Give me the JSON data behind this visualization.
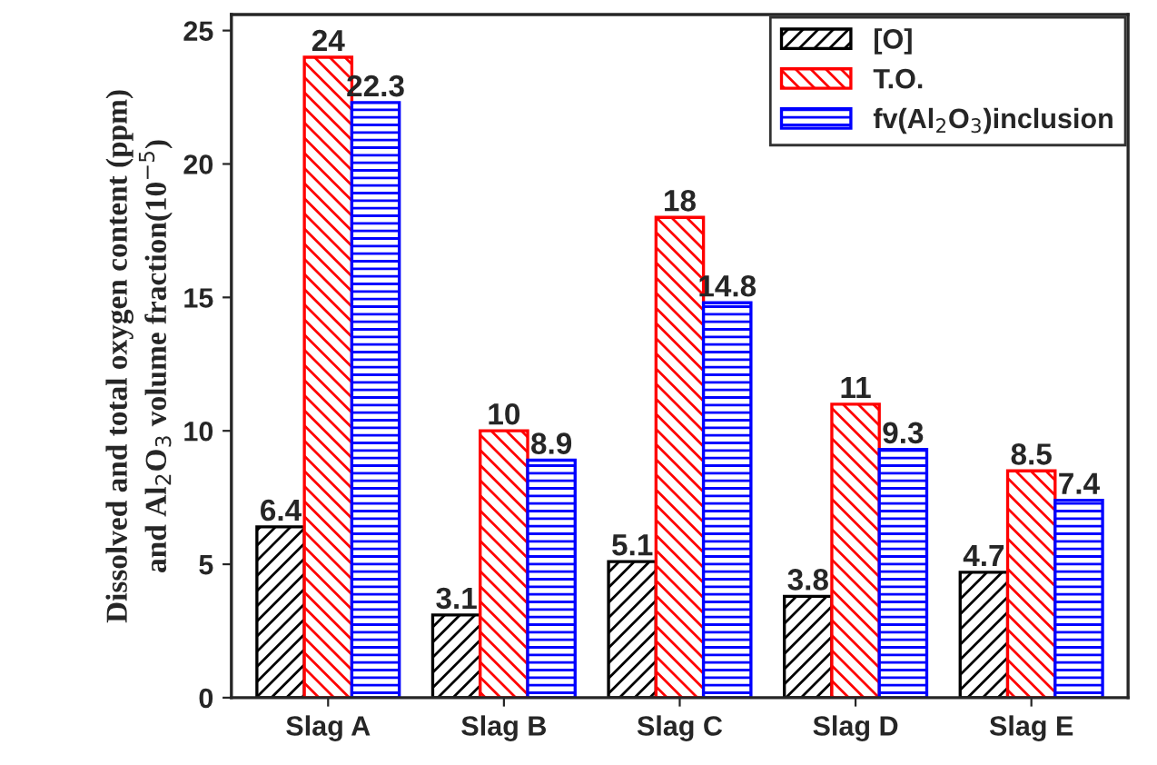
{
  "chart_data": {
    "type": "bar",
    "ylabel": "Dissolved and total oxygen content (ppm)\nand Al$_{2}$O$_{3}$ volume fraction(10$^{−5}$)",
    "categories": [
      "Slag A",
      "Slag B",
      "Slag C",
      "Slag D",
      "Slag E"
    ],
    "series": [
      {
        "name": "[O]",
        "color": "#000000",
        "values": [
          6.4,
          3.1,
          5.1,
          3.8,
          4.7
        ]
      },
      {
        "name": "T.O.",
        "color": "#ff0000",
        "values": [
          24,
          10,
          18,
          11,
          8.5
        ]
      },
      {
        "name": "fv(Al$_{2}$O$_{3}$)inclusion",
        "color": "#0000ff",
        "values": [
          22.3,
          8.9,
          14.8,
          9.3,
          7.4
        ]
      }
    ],
    "ylim": [
      0,
      25.6
    ],
    "yticks": [
      0,
      5,
      10,
      15,
      20,
      25
    ],
    "data_labels": true,
    "grid": false,
    "legend": "top right"
  }
}
